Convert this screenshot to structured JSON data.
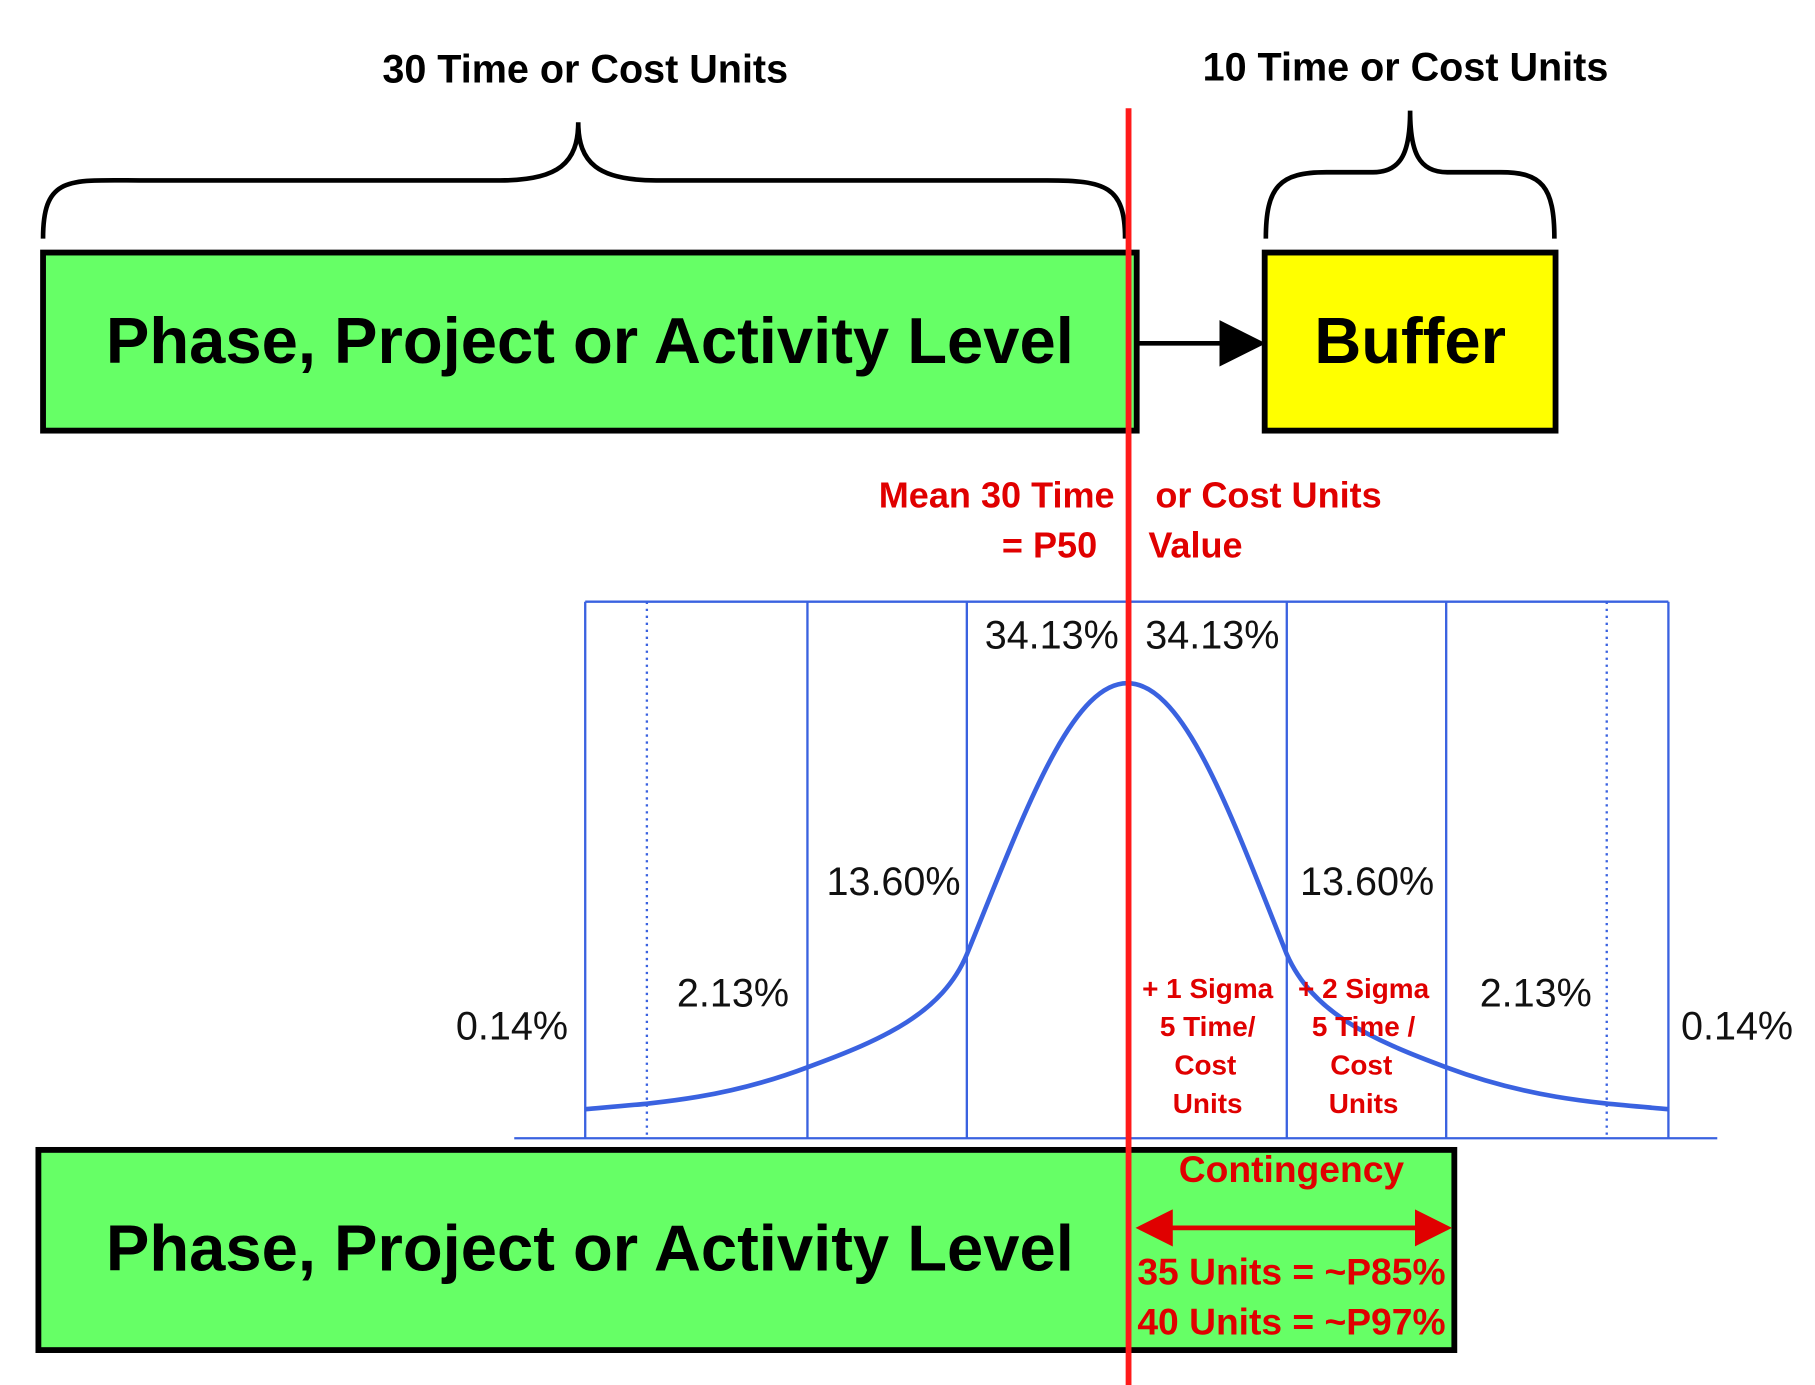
{
  "header": {
    "left_span": "30 Time or Cost Units",
    "right_span": "10 Time or Cost Units"
  },
  "top_row": {
    "activity": "Phase, Project or Activity Level",
    "buffer": "Buffer"
  },
  "mean_label": {
    "line1_left": "Mean 30 Time",
    "line1_right": "or Cost Units",
    "line2_left": "= P50",
    "line2_right": "Value"
  },
  "distribution": {
    "percentages": [
      "0.14%",
      "2.13%",
      "13.60%",
      "34.13%",
      "34.13%",
      "13.60%",
      "2.13%",
      "0.14%"
    ],
    "sigma_notes": [
      [
        "+ 1 Sigma",
        "5 Time/",
        "Cost",
        "Units"
      ],
      [
        "+ 2 Sigma",
        "5 Time /",
        "Cost",
        "Units"
      ]
    ]
  },
  "bottom_row": {
    "activity": "Phase, Project or Activity Level",
    "contingency": "Contingency",
    "outcomes": [
      "35 Units = ~P85%",
      "40 Units = ~P97%"
    ]
  }
}
